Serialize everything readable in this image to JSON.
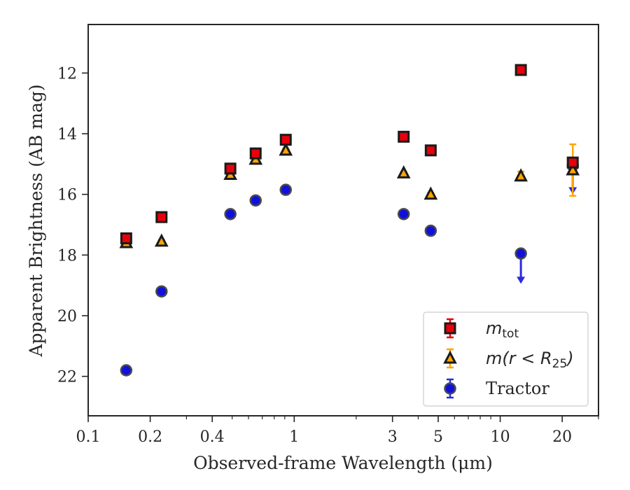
{
  "chart_data": {
    "type": "scatter",
    "title": "",
    "xlabel": "Observed-frame Wavelength (μm)",
    "ylabel": "Apparent Brightness (AB mag)",
    "xscale": "log",
    "xlim": [
      0.1,
      30
    ],
    "ylim": [
      23.3,
      10.4
    ],
    "y_inverted": true,
    "grid": false,
    "legend_position": "lower-right",
    "x_ticks": [
      {
        "value": 0.1,
        "label": "0.1"
      },
      {
        "value": 0.2,
        "label": "0.2"
      },
      {
        "value": 0.4,
        "label": "0.4"
      },
      {
        "value": 1,
        "label": "1"
      },
      {
        "value": 3,
        "label": "3"
      },
      {
        "value": 5,
        "label": "5"
      },
      {
        "value": 10,
        "label": "10"
      },
      {
        "value": 20,
        "label": "20"
      }
    ],
    "y_ticks": [
      {
        "value": 12,
        "label": "12"
      },
      {
        "value": 14,
        "label": "14"
      },
      {
        "value": 16,
        "label": "16"
      },
      {
        "value": 18,
        "label": "18"
      },
      {
        "value": 20,
        "label": "20"
      },
      {
        "value": 22,
        "label": "22"
      }
    ],
    "series": [
      {
        "name": "m_tot",
        "legend_base": "m",
        "legend_sub": "tot",
        "marker": "square",
        "fill": "#e8000b",
        "edge": "#1a1a1a",
        "error_color": "#e8000b",
        "points": [
          {
            "x": 0.153,
            "y": 17.45,
            "err": 0.1
          },
          {
            "x": 0.227,
            "y": 16.75,
            "err": 0.05
          },
          {
            "x": 0.49,
            "y": 15.15,
            "err": 0.05
          },
          {
            "x": 0.65,
            "y": 14.65,
            "err": 0.05
          },
          {
            "x": 0.91,
            "y": 14.2,
            "err": 0.05
          },
          {
            "x": 3.4,
            "y": 14.1,
            "err": 0.05
          },
          {
            "x": 4.6,
            "y": 14.55,
            "err": 0.05
          },
          {
            "x": 12.6,
            "y": 11.9,
            "err": 0.05
          },
          {
            "x": 22.5,
            "y": 14.95,
            "err": 0.05
          }
        ]
      },
      {
        "name": "m(r<R25)",
        "legend_base": "m(r < R",
        "legend_sub": "25",
        "legend_tail": ")",
        "marker": "triangle",
        "fill": "#ffa500",
        "edge": "#1a1a1a",
        "error_color": "#ffa500",
        "points": [
          {
            "x": 0.153,
            "y": 17.6,
            "err": 0.05
          },
          {
            "x": 0.227,
            "y": 17.55,
            "err": 0.05
          },
          {
            "x": 0.49,
            "y": 15.35,
            "err": 0.05
          },
          {
            "x": 0.65,
            "y": 14.85,
            "err": 0.05
          },
          {
            "x": 0.91,
            "y": 14.55,
            "err": 0.05
          },
          {
            "x": 3.4,
            "y": 15.3,
            "err": 0.05
          },
          {
            "x": 4.6,
            "y": 16.0,
            "err": 0.05
          },
          {
            "x": 12.6,
            "y": 15.4,
            "err": 0.15
          },
          {
            "x": 22.5,
            "y": 15.2,
            "err": 0.85
          }
        ]
      },
      {
        "name": "Tractor",
        "legend_base": "Tractor",
        "marker": "circle",
        "fill": "#1010dd",
        "edge": "#4a4a4a",
        "error_color": "#2a2ae0",
        "points": [
          {
            "x": 0.153,
            "y": 21.8,
            "err": 0.05
          },
          {
            "x": 0.227,
            "y": 19.2,
            "err": 0.05
          },
          {
            "x": 0.49,
            "y": 16.65,
            "err": 0.05
          },
          {
            "x": 0.65,
            "y": 16.2,
            "err": 0.05
          },
          {
            "x": 0.91,
            "y": 15.85,
            "err": 0.05
          },
          {
            "x": 3.4,
            "y": 16.65,
            "err": 0.05
          },
          {
            "x": 4.6,
            "y": 17.2,
            "err": 0.05
          },
          {
            "x": 12.6,
            "y": 17.95,
            "err": 0.05,
            "upper_limit": true,
            "arrow_to": 18.9
          },
          {
            "x": 22.5,
            "y": 15.05,
            "err": 0.05,
            "upper_limit": true,
            "arrow_to": 15.95
          }
        ]
      }
    ]
  }
}
